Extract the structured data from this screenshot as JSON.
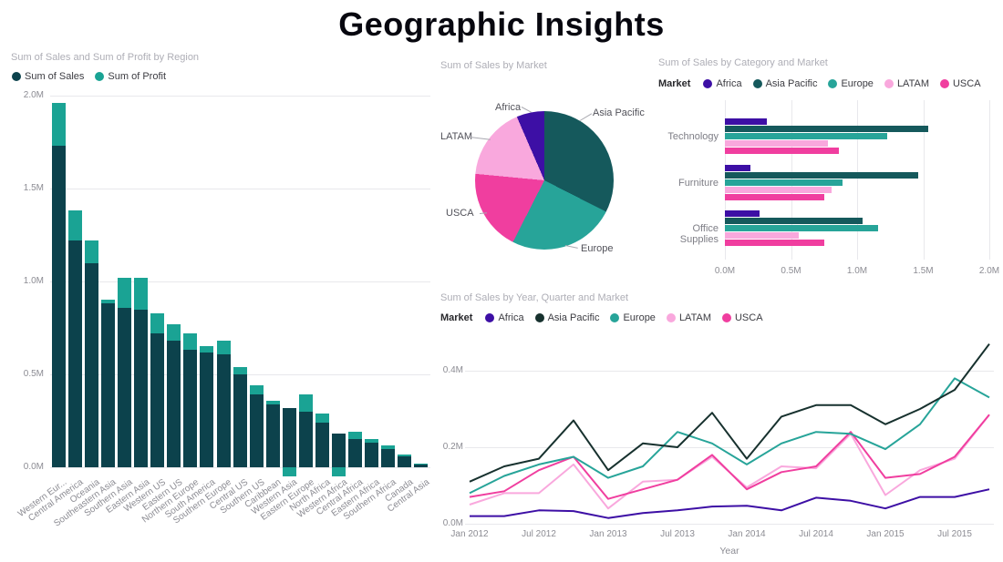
{
  "page": {
    "title": "Geographic Insights"
  },
  "chart_data": [
    {
      "id": "region_bar",
      "type": "bar",
      "stacked": true,
      "title": "Sum of Sales and Sum of Profit by Region",
      "ylim": [
        0,
        2.0
      ],
      "yticks": [
        {
          "label": "2.0M",
          "value": 2.0
        },
        {
          "label": "1.5M",
          "value": 1.5
        },
        {
          "label": "1.0M",
          "value": 1.0
        },
        {
          "label": "0.5M",
          "value": 0.5
        },
        {
          "label": "0.0M",
          "value": 0.0
        }
      ],
      "categories": [
        "Western Eur...",
        "Central America",
        "Oceania",
        "Southeastern Asia",
        "Southern Asia",
        "Eastern Asia",
        "Western US",
        "Eastern US",
        "Northern Europe",
        "South America",
        "Southern Europe",
        "Central US",
        "Southern US",
        "Caribbean",
        "Western Asia",
        "Eastern Europe",
        "North Africa",
        "Western Africa",
        "Central Africa",
        "Eastern Africa",
        "Southern Africa",
        "Canada",
        "Central Asia"
      ],
      "series": [
        {
          "name": "Sum of Sales",
          "color": "#0c424c",
          "values": [
            1.73,
            1.22,
            1.1,
            0.88,
            0.86,
            0.85,
            0.72,
            0.68,
            0.63,
            0.62,
            0.61,
            0.5,
            0.39,
            0.34,
            0.32,
            0.3,
            0.24,
            0.18,
            0.15,
            0.13,
            0.1,
            0.06,
            0.015
          ]
        },
        {
          "name": "Sum of Profit",
          "color": "#1aa394",
          "values": [
            0.23,
            0.16,
            0.12,
            0.02,
            0.16,
            0.17,
            0.11,
            0.09,
            0.09,
            0.03,
            0.07,
            0.04,
            0.05,
            0.02,
            -0.05,
            0.09,
            0.05,
            -0.05,
            0.04,
            0.02,
            0.02,
            0.01,
            0.005
          ]
        }
      ]
    },
    {
      "id": "market_pie",
      "type": "pie",
      "title": "Sum of Sales by Market",
      "slices": [
        {
          "label": "Asia Pacific",
          "pct": 32.5,
          "color": "#15595c"
        },
        {
          "label": "Europe",
          "pct": 25.0,
          "color": "#27a499"
        },
        {
          "label": "USCA",
          "pct": 19.0,
          "color": "#f03e9f"
        },
        {
          "label": "LATAM",
          "pct": 17.0,
          "color": "#f9a8dd"
        },
        {
          "label": "Africa",
          "pct": 6.5,
          "color": "#3d0fa5"
        }
      ]
    },
    {
      "id": "category_bar",
      "type": "bar",
      "horizontal": true,
      "title": "Sum of Sales by Category and Market",
      "legend_title": "Market",
      "xlim": [
        0,
        2.0
      ],
      "xticks": [
        {
          "label": "0.0M",
          "value": 0.0
        },
        {
          "label": "0.5M",
          "value": 0.5
        },
        {
          "label": "1.0M",
          "value": 1.0
        },
        {
          "label": "1.5M",
          "value": 1.5
        },
        {
          "label": "2.0M",
          "value": 2.0
        }
      ],
      "categories": [
        "Technology",
        "Furniture",
        "Office Supplies"
      ],
      "series": [
        {
          "name": "Africa",
          "color": "#3d0fa5",
          "values": [
            0.32,
            0.19,
            0.26
          ]
        },
        {
          "name": "Asia Pacific",
          "color": "#15595c",
          "values": [
            1.54,
            1.46,
            1.04
          ]
        },
        {
          "name": "Europe",
          "color": "#27a499",
          "values": [
            1.23,
            0.89,
            1.16
          ]
        },
        {
          "name": "LATAM",
          "color": "#f9a8dd",
          "values": [
            0.78,
            0.81,
            0.56
          ]
        },
        {
          "name": "USCA",
          "color": "#f03e9f",
          "values": [
            0.86,
            0.75,
            0.75
          ]
        }
      ]
    },
    {
      "id": "quarter_line",
      "type": "line",
      "title": "Sum of Sales by Year, Quarter and Market",
      "legend_title": "Market",
      "xlabel": "Year",
      "xticks": [
        "Jan 2012",
        "Jul 2012",
        "Jan 2013",
        "Jul 2013",
        "Jan 2014",
        "Jul 2014",
        "Jan 2015",
        "Jul 2015"
      ],
      "ylim": [
        0,
        0.5
      ],
      "yticks": [
        {
          "label": "0.4M",
          "value": 0.4
        },
        {
          "label": "0.2M",
          "value": 0.2
        },
        {
          "label": "0.0M",
          "value": 0.0
        }
      ],
      "series": [
        {
          "name": "Africa",
          "color": "#3d0fa5",
          "values": [
            0.02,
            0.02,
            0.035,
            0.033,
            0.015,
            0.028,
            0.035,
            0.045,
            0.047,
            0.035,
            0.068,
            0.06,
            0.04,
            0.07,
            0.07,
            0.09
          ]
        },
        {
          "name": "Asia Pacific",
          "color": "#17312e",
          "values": [
            0.11,
            0.15,
            0.17,
            0.27,
            0.14,
            0.21,
            0.2,
            0.29,
            0.17,
            0.28,
            0.31,
            0.31,
            0.26,
            0.3,
            0.35,
            0.47
          ]
        },
        {
          "name": "Europe",
          "color": "#27a499",
          "values": [
            0.08,
            0.125,
            0.155,
            0.175,
            0.12,
            0.15,
            0.24,
            0.21,
            0.155,
            0.21,
            0.24,
            0.235,
            0.195,
            0.26,
            0.38,
            0.33
          ]
        },
        {
          "name": "LATAM",
          "color": "#f9a8dd",
          "values": [
            0.05,
            0.08,
            0.08,
            0.155,
            0.04,
            0.11,
            0.115,
            0.175,
            0.095,
            0.15,
            0.145,
            0.235,
            0.075,
            0.14,
            0.17,
            0.285
          ]
        },
        {
          "name": "USCA",
          "color": "#f03e9f",
          "values": [
            0.07,
            0.085,
            0.14,
            0.175,
            0.065,
            0.09,
            0.115,
            0.18,
            0.09,
            0.135,
            0.15,
            0.24,
            0.12,
            0.13,
            0.175,
            0.285
          ]
        }
      ]
    }
  ]
}
